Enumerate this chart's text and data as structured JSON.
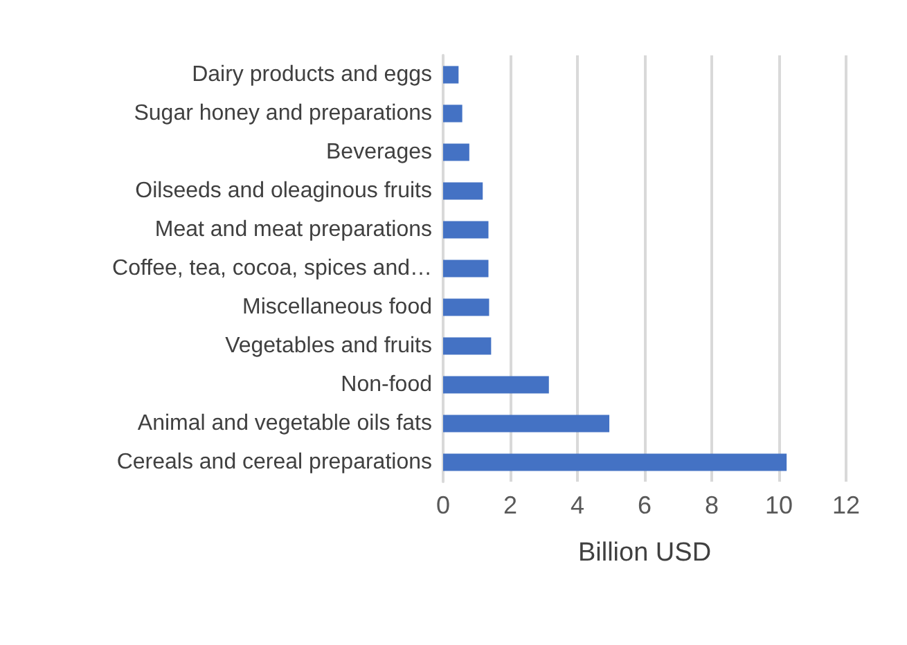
{
  "chart_data": {
    "type": "bar",
    "orientation": "horizontal",
    "xlabel": "Billion USD",
    "categories": [
      "Dairy products and eggs",
      "Sugar honey and preparations",
      "Beverages",
      "Oilseeds and oleaginous fruits",
      "Meat and meat preparations",
      "Coffee, tea, cocoa, spices and…",
      "Miscellaneous food",
      "Vegetables and fruits",
      "Non-food",
      "Animal and vegetable oils fats",
      "Cereals and cereal preparations"
    ],
    "values": [
      0.46,
      0.57,
      0.78,
      1.18,
      1.35,
      1.35,
      1.37,
      1.43,
      3.15,
      4.95,
      10.23
    ],
    "color": "#4472c4",
    "xlim": [
      0,
      12
    ],
    "xticks": [
      0,
      2,
      4,
      6,
      8,
      10,
      12
    ],
    "grid": "x"
  }
}
